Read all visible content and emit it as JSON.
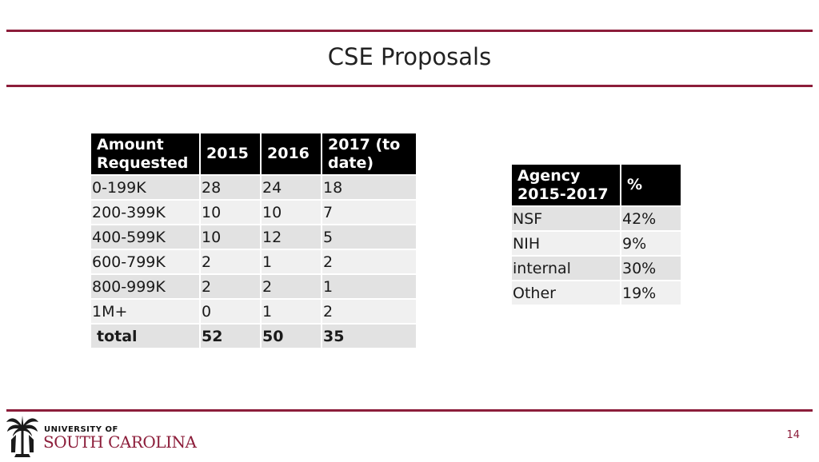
{
  "slide": {
    "title": "CSE Proposals",
    "page_number": "14"
  },
  "amount_table": {
    "headers": [
      "Amount Requested",
      "2015",
      "2016",
      "2017 (to date)"
    ],
    "rows": [
      [
        "0-199K",
        "28",
        "24",
        "18"
      ],
      [
        "200-399K",
        "10",
        "10",
        "7"
      ],
      [
        "400-599K",
        "10",
        "12",
        "5"
      ],
      [
        "600-799K",
        "2",
        "1",
        "2"
      ],
      [
        "800-999K",
        "2",
        "2",
        "1"
      ],
      [
        "1M+",
        "0",
        "1",
        "2"
      ]
    ],
    "total": [
      "total",
      "52",
      "50",
      "35"
    ]
  },
  "agency_table": {
    "headers": [
      "Agency 2015-2017",
      "%"
    ],
    "rows": [
      [
        "NSF",
        "42%"
      ],
      [
        "NIH",
        "9%"
      ],
      [
        "internal",
        "30%"
      ],
      [
        "Other",
        "19%"
      ]
    ]
  },
  "logo": {
    "line1": "UNIVERSITY OF",
    "line2": "SOUTH CAROLINA"
  },
  "colors": {
    "accent": "#8c1d3a",
    "header_bg": "#000000",
    "row_dark": "#e2e2e2",
    "row_light": "#f0f0f0"
  }
}
